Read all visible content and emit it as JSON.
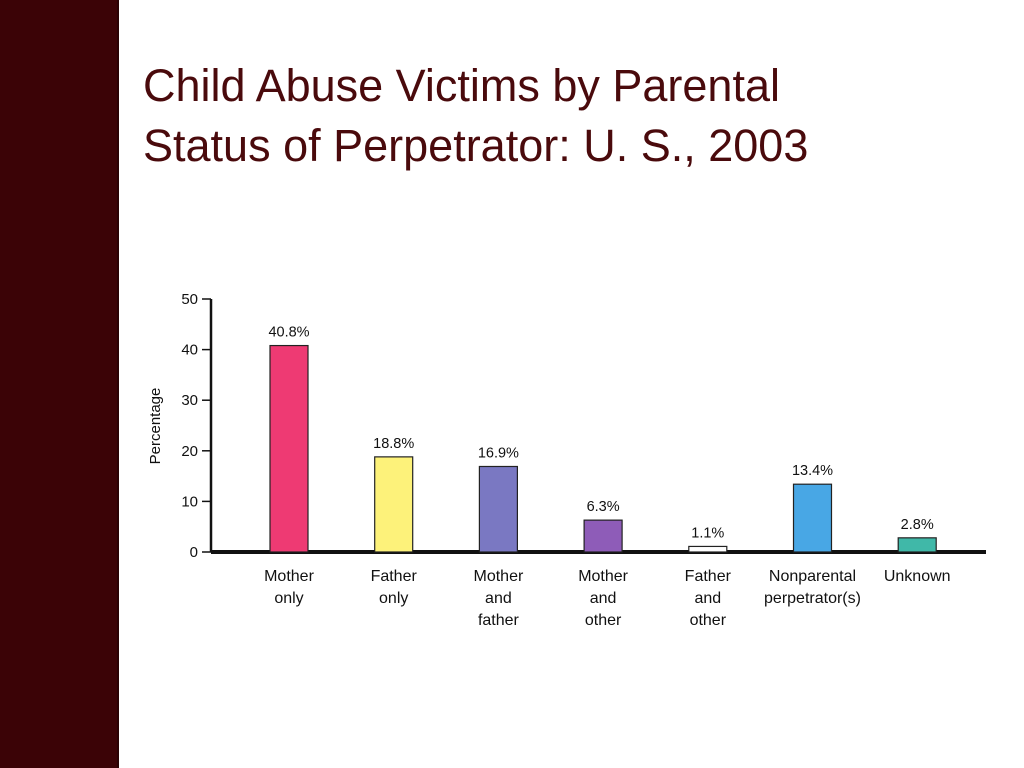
{
  "slide": {
    "title_line1": "Child Abuse Victims by Parental",
    "title_line2": "Status of Perpetrator: U. S., 2003"
  },
  "colors": {
    "sidebar": "#3b0306",
    "title": "#4a0a0c"
  },
  "chart_data": {
    "type": "bar",
    "ylabel": "Percentage",
    "xlabel": "",
    "ylim": [
      0,
      50
    ],
    "yticks": [
      0,
      10,
      20,
      30,
      40,
      50
    ],
    "grid": false,
    "legend": "none",
    "categories": [
      [
        "Mother",
        "only"
      ],
      [
        "Father",
        "only"
      ],
      [
        "Mother",
        "and",
        "father"
      ],
      [
        "Mother",
        "and",
        "other"
      ],
      [
        "Father",
        "and",
        "other"
      ],
      [
        "Nonparental",
        "perpetrator(s)"
      ],
      [
        "Unknown"
      ]
    ],
    "values": [
      40.8,
      18.8,
      16.9,
      6.3,
      1.1,
      13.4,
      2.8
    ],
    "value_labels": [
      "40.8%",
      "18.8%",
      "16.9%",
      "6.3%",
      "1.1%",
      "13.4%",
      "2.8%"
    ],
    "bar_colors": [
      "#ee3a73",
      "#fdf27a",
      "#7a78c2",
      "#8e5cb8",
      "#ffffff",
      "#48a7e5",
      "#40b8a8"
    ]
  }
}
